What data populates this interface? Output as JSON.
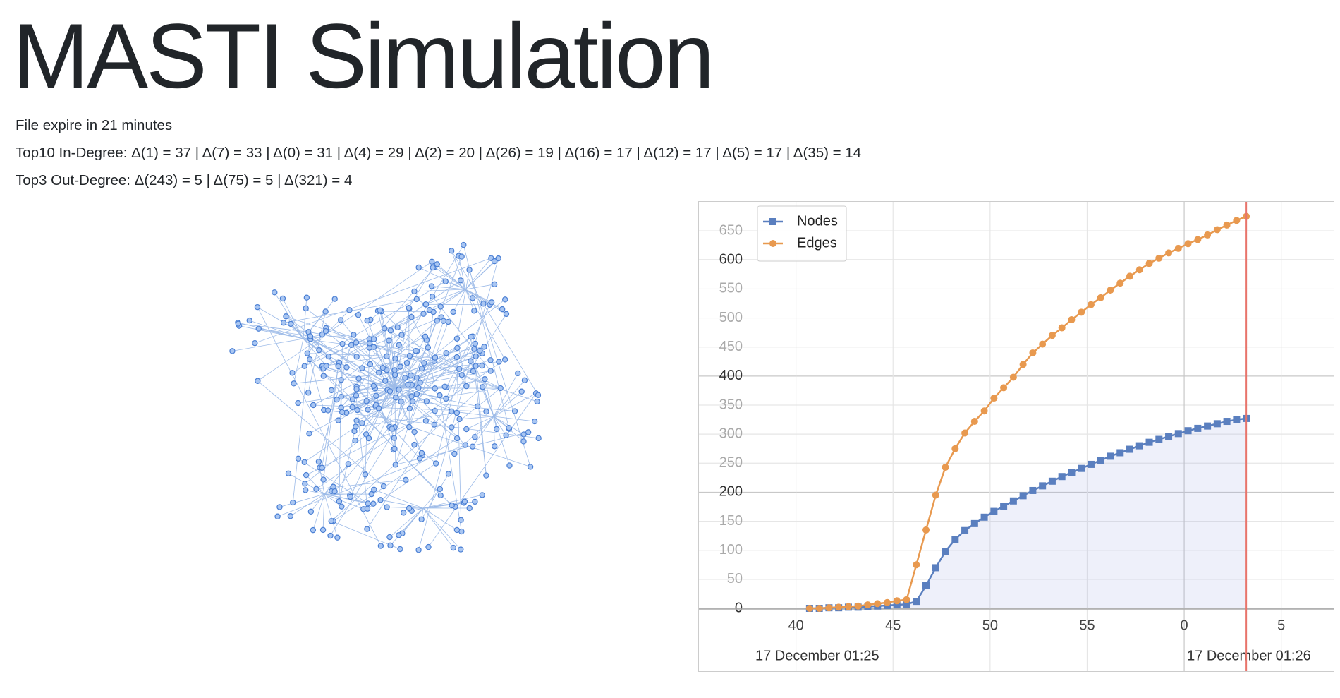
{
  "header": {
    "title": "MASTI Simulation",
    "lines": [
      "File expire in 21 minutes",
      "Top10 In-Degree: Δ(1) = 37 | Δ(7) = 33 | Δ(0) = 31 | Δ(4) = 29 | Δ(2) = 20 | Δ(26) = 19 | Δ(16) = 17 | Δ(12) = 17 | Δ(5) = 17 | Δ(35) = 14",
      "Top3 Out-Degree: Δ(243) = 5 | Δ(75) = 5 | Δ(321) = 4"
    ]
  },
  "chart_data": {
    "type": "line",
    "x": [
      40.7,
      41.2,
      41.7,
      42.2,
      42.7,
      43.2,
      43.7,
      44.2,
      44.7,
      45.2,
      45.7,
      46.2,
      46.7,
      47.2,
      47.7,
      48.2,
      48.7,
      49.2,
      49.7,
      50.2,
      50.7,
      51.2,
      51.7,
      52.2,
      52.7,
      53.2,
      53.7,
      54.2,
      54.7,
      55.2,
      55.7,
      56.2,
      56.7,
      57.2,
      57.7,
      58.2,
      58.7,
      59.2,
      59.7,
      60.2,
      60.7,
      61.2,
      61.7,
      62.2,
      62.7,
      63.2
    ],
    "series": [
      {
        "name": "Nodes",
        "color": "#5a7fbf",
        "marker": "square",
        "area": true,
        "values": [
          0,
          0,
          1,
          1,
          2,
          2,
          3,
          4,
          5,
          6,
          7,
          12,
          39,
          70,
          98,
          119,
          134,
          146,
          157,
          167,
          176,
          185,
          194,
          203,
          211,
          219,
          227,
          234,
          241,
          248,
          255,
          262,
          268,
          274,
          280,
          286,
          291,
          296,
          301,
          306,
          310,
          314,
          318,
          322,
          325,
          327
        ]
      },
      {
        "name": "Edges",
        "color": "#e8994f",
        "marker": "circle",
        "area": false,
        "values": [
          0,
          0,
          1,
          2,
          3,
          4,
          6,
          8,
          10,
          13,
          15,
          75,
          135,
          195,
          243,
          275,
          302,
          322,
          340,
          362,
          380,
          398,
          420,
          440,
          455,
          470,
          483,
          497,
          510,
          523,
          535,
          548,
          560,
          572,
          583,
          594,
          603,
          612,
          620,
          628,
          635,
          643,
          652,
          660,
          668,
          675
        ]
      }
    ],
    "xlim": [
      35,
      67.7
    ],
    "xticks": [
      40,
      45,
      50,
      55,
      {
        "value": 60,
        "label": "0"
      },
      {
        "value": 65,
        "label": "5"
      }
    ],
    "ylim": [
      0,
      700
    ],
    "yticks": [
      0,
      50,
      100,
      150,
      200,
      250,
      300,
      350,
      400,
      450,
      500,
      550,
      600,
      650
    ],
    "date_labels": [
      "17 December 01:25",
      "17 December 01:26"
    ],
    "now_line": {
      "x": 63.2,
      "color": "#e8746b"
    },
    "grid": true,
    "legend": "top-left"
  }
}
